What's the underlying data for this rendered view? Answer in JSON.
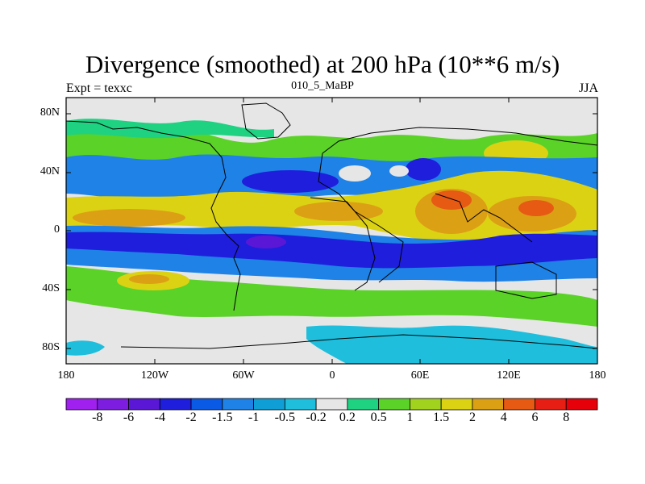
{
  "title": "Divergence (smoothed) at 200 hPa (10**6 m/s)",
  "left_label": "Expt = texxc",
  "center_label": "010_5_MaBP",
  "right_label": "JJA",
  "lat_ticks": [
    "80N",
    "40N",
    "0",
    "40S",
    "80S"
  ],
  "lon_ticks": [
    "180",
    "120W",
    "60W",
    "0",
    "60E",
    "120E",
    "180"
  ],
  "colorbar": {
    "labels": [
      "-8",
      "-6",
      "-4",
      "-2",
      "-1.5",
      "-1",
      "-0.5",
      "-0.2",
      "0.2",
      "0.5",
      "1",
      "1.5",
      "2",
      "4",
      "6",
      "8"
    ],
    "colors": [
      "#a020f0",
      "#7c1de0",
      "#5a18d6",
      "#1e1edc",
      "#0a5ae6",
      "#1e82e6",
      "#0f9ed6",
      "#1ebedc",
      "#e6e6e6",
      "#1ed282",
      "#5ad228",
      "#a0d21e",
      "#dcd214",
      "#dca014",
      "#e65a14",
      "#e61e14",
      "#e6000a"
    ]
  },
  "colors": {
    "neutral": "#e6e6e6",
    "strong_negative": "#1e1edc",
    "strong_positive": "#e61e14"
  }
}
